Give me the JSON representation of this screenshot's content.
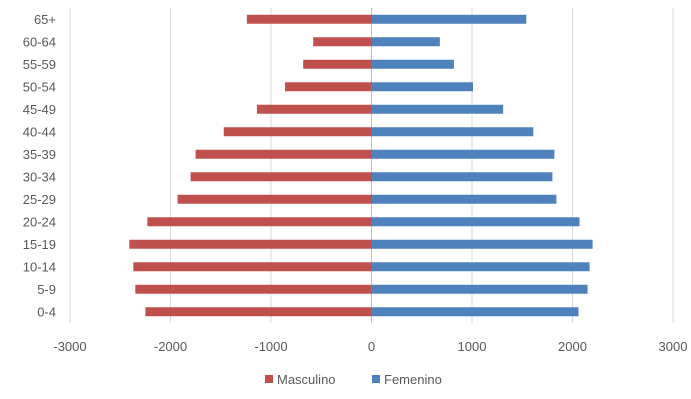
{
  "chart_data": {
    "type": "bar",
    "orientation": "horizontal",
    "title": "",
    "xlabel": "",
    "ylabel": "",
    "categories": [
      "0-4",
      "5-9",
      "10-14",
      "15-19",
      "20-24",
      "25-29",
      "30-34",
      "35-39",
      "40-44",
      "45-49",
      "50-54",
      "55-59",
      "60-64",
      "65+"
    ],
    "series": [
      {
        "name": "Masculino",
        "color": "#C0504D",
        "values": [
          -2250,
          -2350,
          -2370,
          -2410,
          -2230,
          -1930,
          -1800,
          -1750,
          -1470,
          -1140,
          -860,
          -680,
          -580,
          -1240
        ]
      },
      {
        "name": "Femenino",
        "color": "#4F81BD",
        "values": [
          2060,
          2150,
          2170,
          2200,
          2070,
          1840,
          1800,
          1820,
          1610,
          1310,
          1010,
          820,
          680,
          1540
        ]
      }
    ],
    "xlim": [
      -3000,
      3000
    ],
    "xticks": [
      -3000,
      -2000,
      -1000,
      0,
      1000,
      2000,
      3000
    ],
    "grid": "vertical",
    "legend_position": "bottom"
  }
}
